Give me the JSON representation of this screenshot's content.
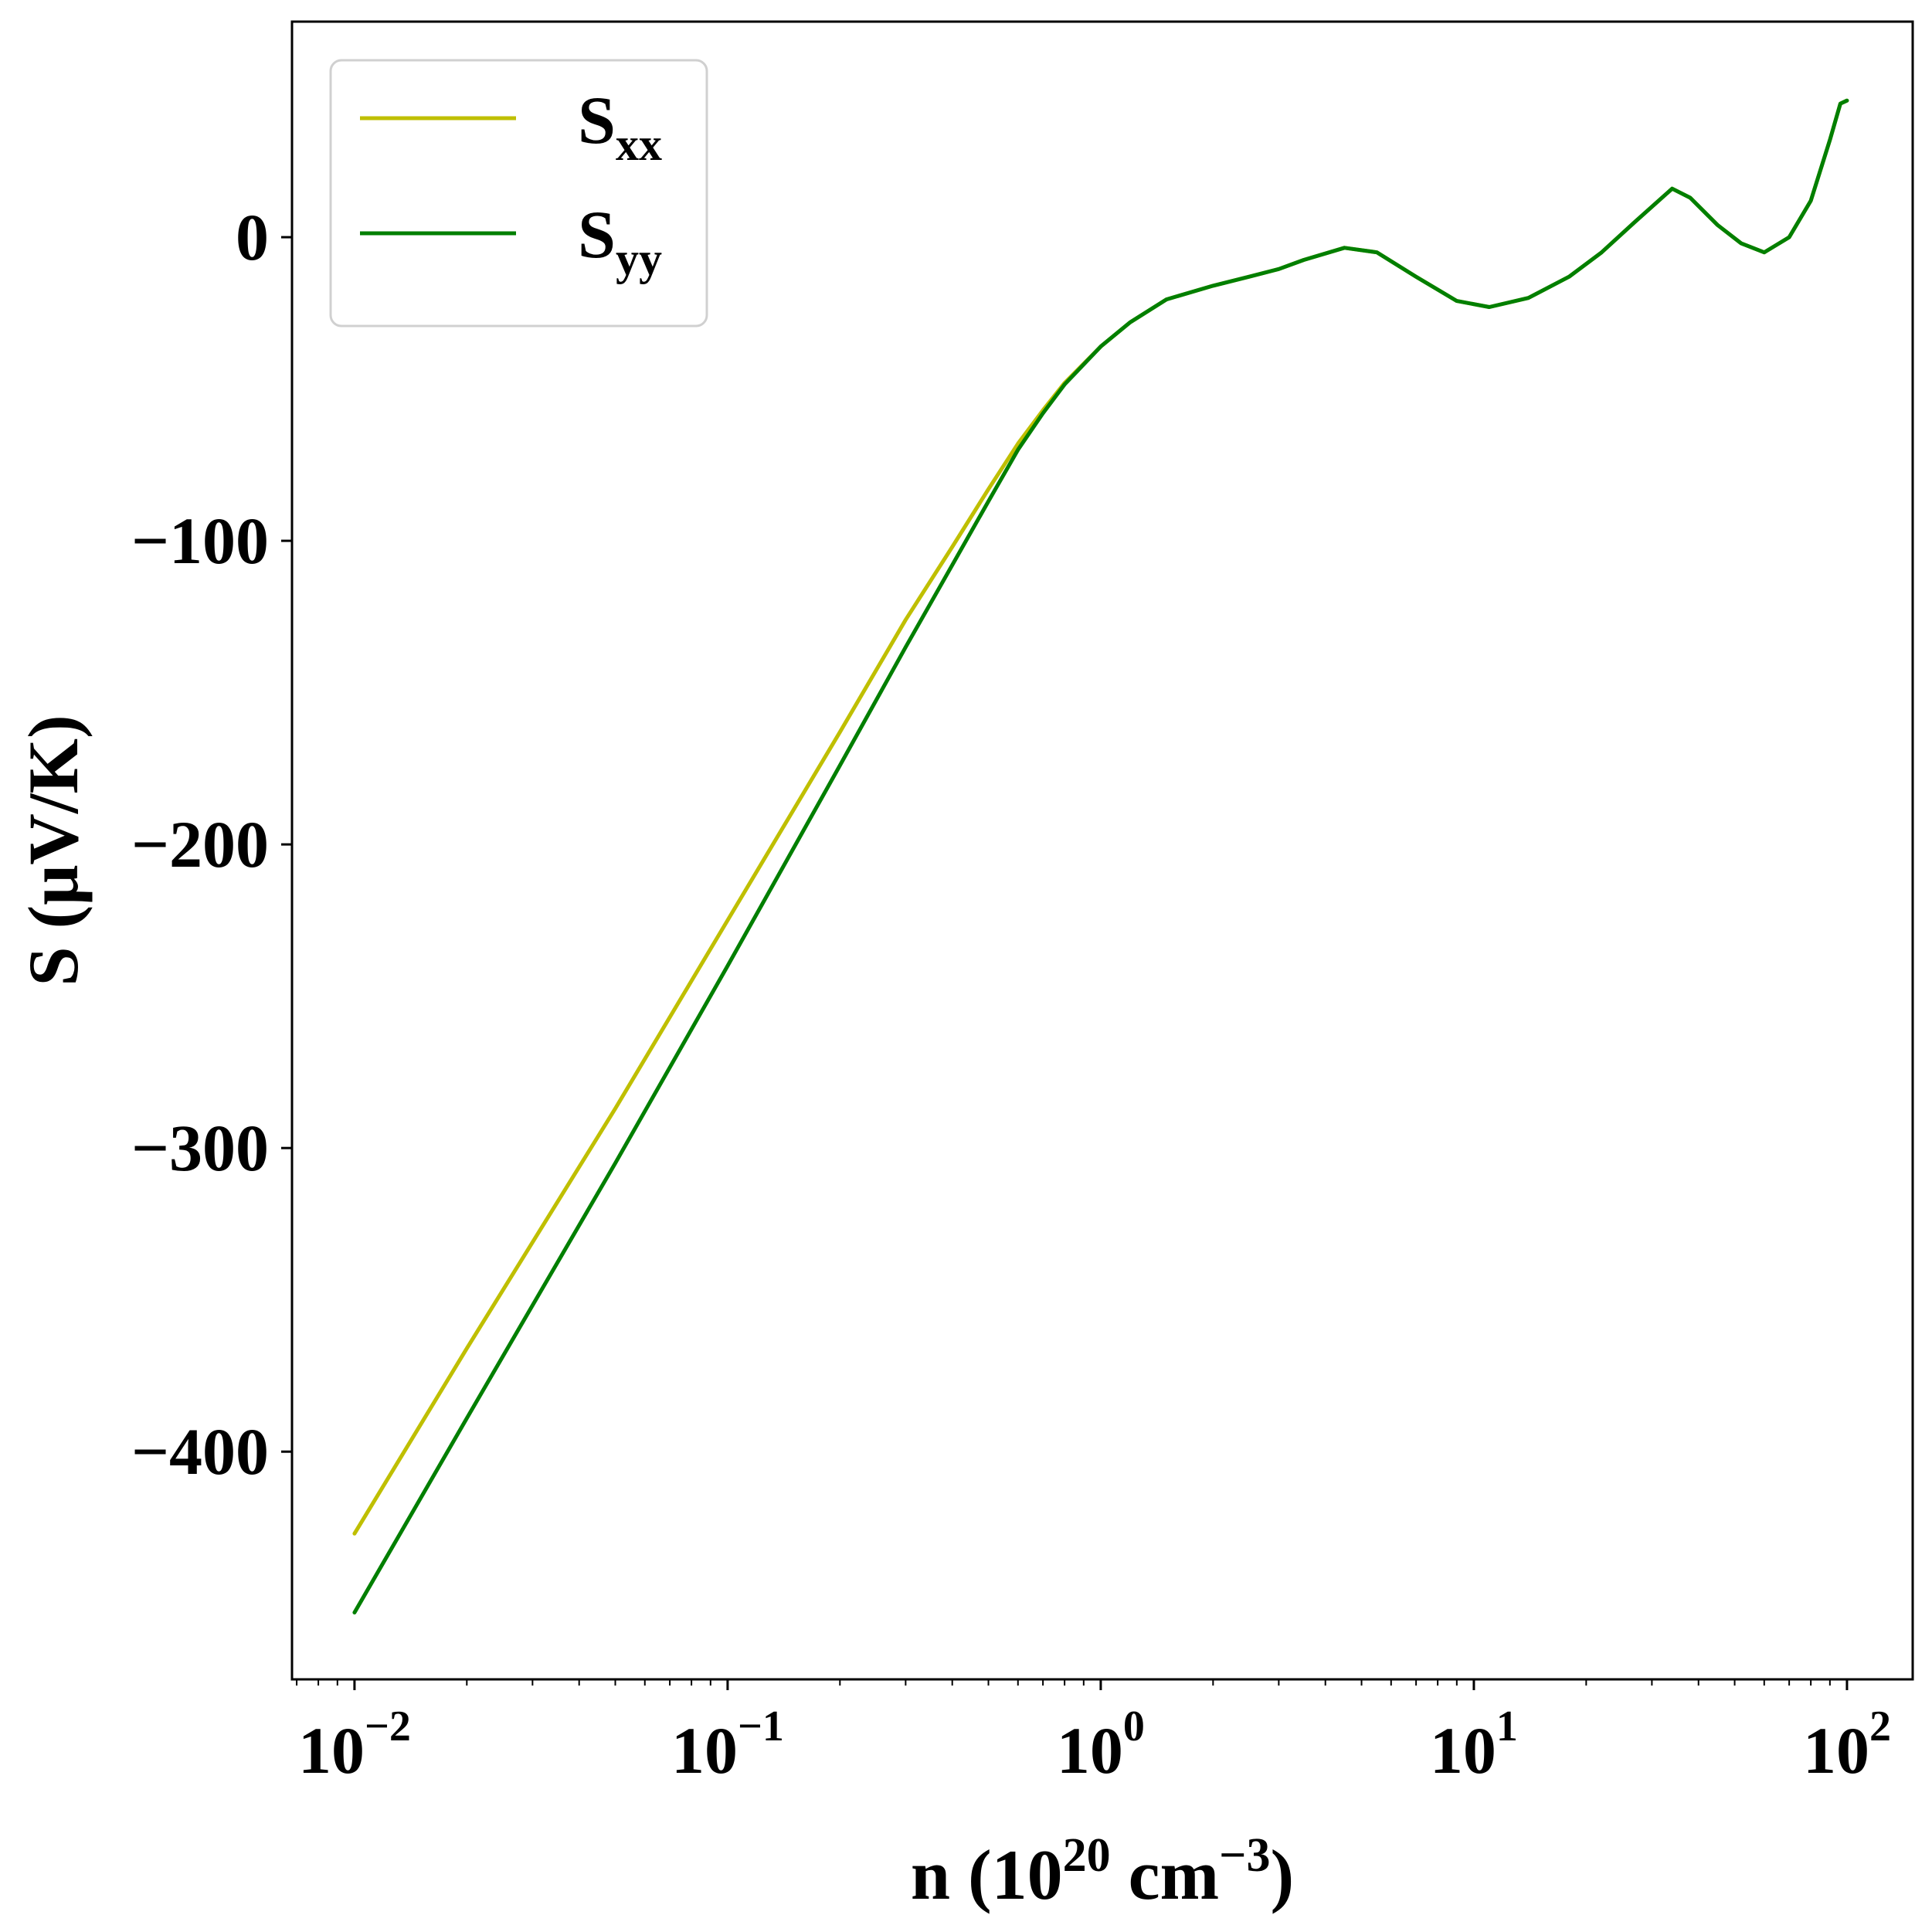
{
  "chart_data": {
    "type": "line",
    "xscale": "log",
    "xlim": [
      0.0068,
      150
    ],
    "ylim": [
      -475,
      71
    ],
    "grid": false,
    "xlabel": {
      "prefix": "n (10",
      "sup1": "20",
      "middle": " cm",
      "sup2": "−3",
      "suffix": ")"
    },
    "ylabel": "S (μV/K)",
    "x_ticks": [
      {
        "value": 0.01,
        "base": "10",
        "exp": "−2"
      },
      {
        "value": 0.1,
        "base": "10",
        "exp": "−1"
      },
      {
        "value": 1,
        "base": "10",
        "exp": "0"
      },
      {
        "value": 10,
        "base": "10",
        "exp": "1"
      },
      {
        "value": 100,
        "base": "10",
        "exp": "2"
      }
    ],
    "y_ticks": [
      {
        "value": 0,
        "label": "0"
      },
      {
        "value": -100,
        "label": "−100"
      },
      {
        "value": -200,
        "label": "−200"
      },
      {
        "value": -300,
        "label": "−300"
      },
      {
        "value": -400,
        "label": "−400"
      }
    ],
    "legend_position": "top-left",
    "series": [
      {
        "name": "S",
        "subscript": "xx",
        "color": "#bfbf00",
        "points": [
          [
            0.01,
            -427
          ],
          [
            0.02,
            -366
          ],
          [
            0.05,
            -287
          ],
          [
            0.1,
            -225
          ],
          [
            0.2,
            -163
          ],
          [
            0.3,
            -126
          ],
          [
            0.4,
            -102
          ],
          [
            0.5,
            -83
          ],
          [
            0.6,
            -68
          ],
          [
            0.7,
            -57
          ],
          [
            0.8,
            -48
          ],
          [
            1.0,
            -36
          ],
          [
            1.2,
            -28
          ],
          [
            1.5,
            -20.5
          ],
          [
            2.0,
            -16
          ],
          [
            2.5,
            -13
          ],
          [
            3.0,
            -10.5
          ],
          [
            3.5,
            -7.5
          ],
          [
            4.5,
            -3.5
          ],
          [
            5.5,
            -5
          ],
          [
            7.0,
            -13
          ],
          [
            9.0,
            -21
          ],
          [
            11.0,
            -23
          ],
          [
            14.0,
            -20
          ],
          [
            18.0,
            -13
          ],
          [
            22.0,
            -5
          ],
          [
            27.0,
            5
          ],
          [
            34.0,
            16
          ],
          [
            38.0,
            13
          ],
          [
            45.0,
            4
          ],
          [
            52.0,
            -2
          ],
          [
            60.0,
            -5
          ],
          [
            70.0,
            0
          ],
          [
            80.0,
            12
          ],
          [
            90.0,
            32
          ],
          [
            96.0,
            44
          ],
          [
            100.0,
            45
          ]
        ]
      },
      {
        "name": "S",
        "subscript": "yy",
        "color": "#007f00",
        "points": [
          [
            0.01,
            -453
          ],
          [
            0.02,
            -389
          ],
          [
            0.05,
            -305
          ],
          [
            0.1,
            -240
          ],
          [
            0.2,
            -174
          ],
          [
            0.3,
            -135
          ],
          [
            0.4,
            -108
          ],
          [
            0.5,
            -87
          ],
          [
            0.6,
            -70
          ],
          [
            0.7,
            -58
          ],
          [
            0.8,
            -48.5
          ],
          [
            1.0,
            -36
          ],
          [
            1.2,
            -28
          ],
          [
            1.5,
            -20.5
          ],
          [
            2.0,
            -16
          ],
          [
            2.5,
            -13
          ],
          [
            3.0,
            -10.5
          ],
          [
            3.5,
            -7.5
          ],
          [
            4.5,
            -3.5
          ],
          [
            5.5,
            -5
          ],
          [
            7.0,
            -13
          ],
          [
            9.0,
            -21
          ],
          [
            11.0,
            -23
          ],
          [
            14.0,
            -20
          ],
          [
            18.0,
            -13
          ],
          [
            22.0,
            -5
          ],
          [
            27.0,
            5
          ],
          [
            34.0,
            16
          ],
          [
            38.0,
            13
          ],
          [
            45.0,
            4
          ],
          [
            52.0,
            -2
          ],
          [
            60.0,
            -5
          ],
          [
            70.0,
            0
          ],
          [
            80.0,
            12
          ],
          [
            90.0,
            32
          ],
          [
            96.0,
            44
          ],
          [
            100.0,
            45
          ]
        ]
      }
    ]
  }
}
